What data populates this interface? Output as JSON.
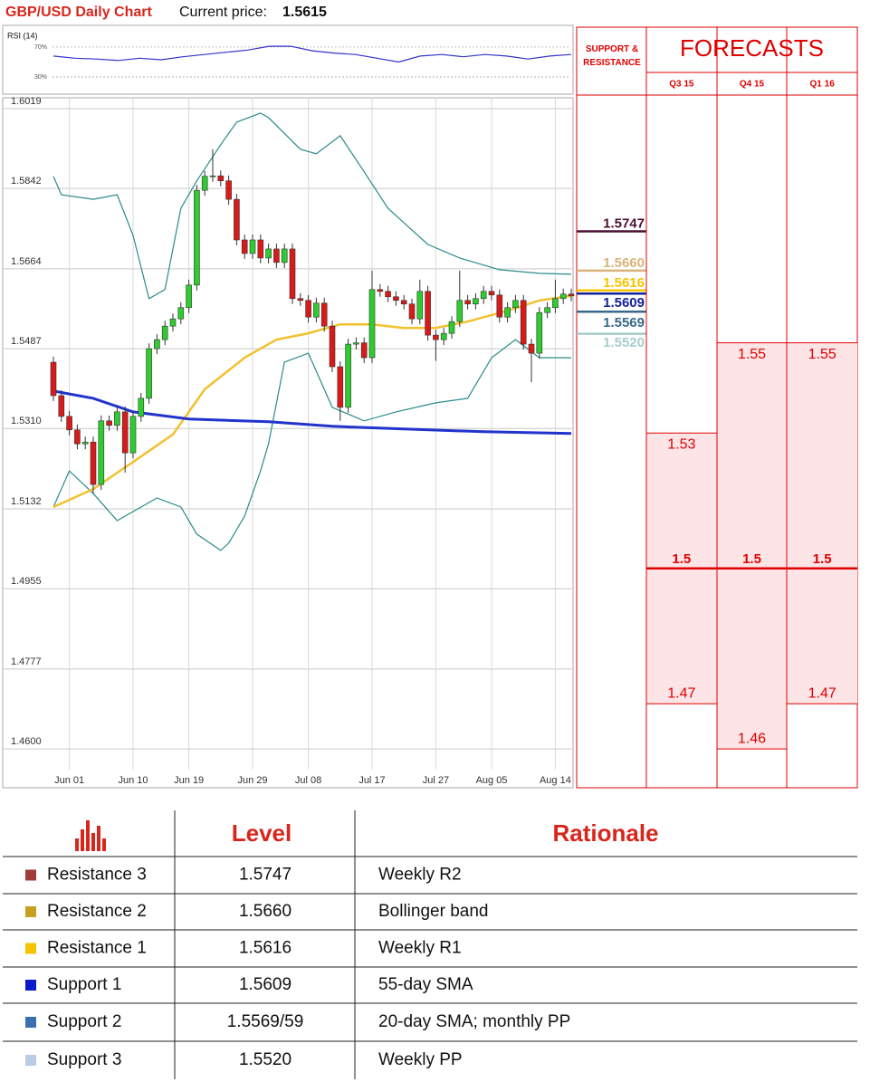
{
  "header": {
    "title": "GBP/USD Daily Chart",
    "price_label": "Current price:",
    "price": "1.5615"
  },
  "chart_data": {
    "type": "candlestick",
    "categories": [
      null,
      null,
      "Jun 01",
      null,
      null,
      null,
      null,
      null,
      null,
      null,
      "Jun 10",
      null,
      null,
      null,
      null,
      null,
      null,
      "Jun 19",
      null,
      null,
      null,
      null,
      null,
      null,
      null,
      "Jun 29",
      null,
      null,
      null,
      null,
      null,
      null,
      "Jul 08",
      null,
      null,
      null,
      null,
      null,
      null,
      null,
      "Jul 17",
      null,
      null,
      null,
      null,
      null,
      null,
      null,
      "Jul 27",
      null,
      null,
      null,
      null,
      null,
      null,
      "Aug 05",
      null,
      null,
      null,
      null,
      null,
      null,
      null,
      "Aug 14",
      null,
      null
    ],
    "open": [
      1.5457,
      1.5383,
      1.5337,
      1.5307,
      1.5276,
      1.528,
      1.5186,
      1.5327,
      1.5317,
      1.5347,
      1.5256,
      1.5337,
      1.5377,
      1.5487,
      1.5507,
      1.5537,
      1.5553,
      1.5578,
      1.5628,
      1.5838,
      1.5869,
      1.587,
      1.5859,
      1.5818,
      1.5728,
      1.5698,
      1.5728,
      1.5688,
      1.5708,
      1.5678,
      1.5708,
      1.5598,
      1.5594,
      1.5557,
      1.5588,
      1.5537,
      1.5447,
      1.5357,
      1.5497,
      1.55,
      1.5467,
      1.5618,
      1.5614,
      1.5602,
      1.5594,
      1.5586,
      1.5553,
      1.5614,
      1.5517,
      1.5507,
      1.5521,
      1.5547,
      1.5594,
      1.5586,
      1.5598,
      1.5614,
      1.5606,
      1.5557,
      1.5578,
      1.5594,
      1.5497,
      1.5477,
      1.5567,
      1.5578,
      1.5598,
      1.5608
    ],
    "high": [
      1.5469,
      1.5395,
      1.5349,
      1.5319,
      1.5292,
      1.5292,
      1.5339,
      1.5339,
      1.5359,
      1.5359,
      1.5349,
      1.5389,
      1.5499,
      1.5519,
      1.5549,
      1.5565,
      1.559,
      1.564,
      1.585,
      1.5881,
      1.5929,
      1.5882,
      1.5871,
      1.583,
      1.574,
      1.574,
      1.574,
      1.572,
      1.572,
      1.572,
      1.572,
      1.561,
      1.5606,
      1.56,
      1.56,
      1.5549,
      1.5459,
      1.5509,
      1.5512,
      1.5512,
      1.566,
      1.563,
      1.5626,
      1.5614,
      1.5606,
      1.5598,
      1.564,
      1.5626,
      1.5529,
      1.5533,
      1.5559,
      1.566,
      1.5606,
      1.561,
      1.5626,
      1.5626,
      1.5618,
      1.559,
      1.5606,
      1.5606,
      1.5509,
      1.5579,
      1.559,
      1.564,
      1.562,
      1.562
    ],
    "low": [
      1.5371,
      1.5325,
      1.5295,
      1.5264,
      1.5264,
      1.5166,
      1.5174,
      1.5305,
      1.5305,
      1.5212,
      1.5244,
      1.5325,
      1.5365,
      1.5475,
      1.5495,
      1.5525,
      1.5541,
      1.5566,
      1.5616,
      1.5826,
      1.5857,
      1.5847,
      1.5806,
      1.5716,
      1.5686,
      1.5686,
      1.5676,
      1.5676,
      1.5666,
      1.5666,
      1.5586,
      1.5582,
      1.5545,
      1.5545,
      1.5525,
      1.5435,
      1.5327,
      1.5345,
      1.5485,
      1.5455,
      1.5455,
      1.5602,
      1.559,
      1.5582,
      1.5574,
      1.5541,
      1.5541,
      1.5505,
      1.546,
      1.5495,
      1.5509,
      1.5535,
      1.5574,
      1.5574,
      1.5586,
      1.5594,
      1.5545,
      1.5545,
      1.5566,
      1.5485,
      1.5413,
      1.5465,
      1.5555,
      1.5566,
      1.5586,
      1.5592
    ],
    "close": [
      1.5383,
      1.5337,
      1.5307,
      1.5276,
      1.528,
      1.5186,
      1.5327,
      1.5317,
      1.5347,
      1.5256,
      1.5337,
      1.5377,
      1.5487,
      1.5507,
      1.5537,
      1.5553,
      1.5578,
      1.5628,
      1.5838,
      1.5869,
      1.587,
      1.5859,
      1.5818,
      1.5728,
      1.5698,
      1.5728,
      1.5688,
      1.5708,
      1.5678,
      1.5708,
      1.5598,
      1.5594,
      1.5557,
      1.5588,
      1.5537,
      1.5447,
      1.5357,
      1.5497,
      1.55,
      1.5467,
      1.5618,
      1.5614,
      1.5602,
      1.5594,
      1.5586,
      1.5553,
      1.5614,
      1.5517,
      1.5507,
      1.5521,
      1.5547,
      1.5594,
      1.5586,
      1.5598,
      1.5614,
      1.5606,
      1.5557,
      1.5578,
      1.5594,
      1.5497,
      1.5477,
      1.5567,
      1.5578,
      1.5598,
      1.5608,
      1.5604
    ],
    "up_color": "#2ecc2e",
    "down_color": "#d91a1a",
    "ylim": [
      1.4518,
      1.6043
    ],
    "yticks": [
      1.6019,
      1.5842,
      1.5664,
      1.5487,
      {
        "value": 1.531,
        "label": "1.5310"
      },
      1.5132,
      1.4955,
      1.4777,
      {
        "value": 1.46,
        "label": "1.4600"
      }
    ],
    "grid": true,
    "lines": [
      {
        "color": "#2a8a8a",
        "width": 1.2,
        "x": [
          0,
          1,
          5,
          8,
          10,
          12,
          14,
          16,
          18,
          21,
          23,
          26,
          27,
          31,
          33,
          36,
          39,
          42,
          47,
          51,
          56,
          61,
          65
        ],
        "values": [
          1.5869,
          1.5828,
          1.5818,
          1.5828,
          1.5738,
          1.5598,
          1.5618,
          1.5798,
          1.5859,
          1.5939,
          1.5989,
          1.6009,
          1.5999,
          1.5929,
          1.5919,
          1.5959,
          1.5879,
          1.5798,
          1.5718,
          1.5688,
          1.5662,
          1.5654,
          1.5652
        ]
      },
      {
        "color": "#2a8a8a",
        "width": 1.2,
        "x": [
          0,
          2,
          5,
          8,
          10,
          13,
          16,
          18,
          21,
          22,
          24,
          26,
          27,
          29,
          32,
          35,
          39,
          43,
          48,
          52,
          55,
          58,
          61,
          65
        ],
        "values": [
          1.5136,
          1.5216,
          1.5166,
          1.5106,
          1.5126,
          1.5156,
          1.5136,
          1.5076,
          1.504,
          1.5056,
          1.5116,
          1.5216,
          1.5276,
          1.5457,
          1.5477,
          1.5357,
          1.5327,
          1.5347,
          1.5367,
          1.5377,
          1.5467,
          1.5507,
          1.5467,
          1.5467
        ]
      },
      {
        "color": "#f2c12e",
        "width": 2.5,
        "x": [
          0,
          5,
          10,
          15,
          19,
          24,
          28,
          32,
          36,
          40,
          44,
          48,
          52,
          57,
          61,
          65
        ],
        "values": [
          1.5136,
          1.5176,
          1.5236,
          1.5297,
          1.5397,
          1.5467,
          1.5507,
          1.5521,
          1.5541,
          1.5541,
          1.5533,
          1.5533,
          1.5547,
          1.5571,
          1.5594,
          1.5604
        ]
      },
      {
        "color": "#2233cc",
        "width": 3,
        "x": [
          0,
          5,
          10,
          17,
          27,
          35,
          44,
          54,
          65
        ],
        "values": [
          1.5393,
          1.5377,
          1.5347,
          1.5331,
          1.5325,
          1.5315,
          1.5309,
          1.5303,
          1.5299
        ]
      }
    ],
    "rsi": {
      "title": "RSI (14)",
      "color": "#3333cc",
      "ylim": [
        7,
        99
      ],
      "levels": [
        {
          "value": 70,
          "label": "70%"
        },
        {
          "value": 30,
          "label": "30%"
        }
      ],
      "values": [
        58,
        55,
        54,
        52,
        55,
        53,
        57,
        60,
        63,
        66,
        71,
        71,
        65,
        62,
        60,
        55,
        50,
        58,
        60,
        57,
        60,
        58,
        54,
        58,
        60
      ]
    }
  },
  "levels": {
    "title": "SUPPORT & RESISTANCE",
    "items": [
      {
        "value": 1.5747,
        "color": "#4a1030"
      },
      {
        "value": 1.566,
        "label": "1.5660",
        "color": "#d8b47c"
      },
      {
        "value": 1.5616,
        "color": "#f5c400"
      },
      {
        "value": 1.5609,
        "color": "#14229a"
      },
      {
        "value": 1.5569,
        "color": "#3a6a8a"
      },
      {
        "value": 1.552,
        "label": "1.5520",
        "color": "#a8cccc"
      }
    ]
  },
  "forecasts": {
    "title": "FORECASTS",
    "color": "#e00000",
    "shade": "#fde4e6",
    "columns": [
      {
        "label": "Q3 15",
        "high": 1.53,
        "mid": 1.5,
        "low": 1.47
      },
      {
        "label": "Q4 15",
        "high": 1.55,
        "mid": 1.5,
        "low": 1.46
      },
      {
        "label": "Q1 16",
        "high": 1.55,
        "mid": 1.5,
        "low": 1.47
      }
    ]
  },
  "table": {
    "headers": [
      "Level",
      "Rationale"
    ],
    "rows": [
      {
        "name": "Resistance 3",
        "color": "#9e3b3b",
        "level": "1.5747",
        "rationale": "Weekly R2"
      },
      {
        "name": "Resistance 2",
        "color": "#c8a020",
        "level": "1.5660",
        "rationale": "Bollinger band"
      },
      {
        "name": "Resistance 1",
        "color": "#f5c400",
        "level": "1.5616",
        "rationale": "Weekly R1"
      },
      {
        "name": "Support 1",
        "color": "#0a1ac8",
        "level": "1.5609",
        "rationale": "55-day SMA"
      },
      {
        "name": "Support 2",
        "color": "#3a70b0",
        "level": "1.5569/59",
        "rationale": "20-day SMA; monthly PP"
      },
      {
        "name": "Support 3",
        "color": "#b8cce4",
        "level": "1.5520",
        "rationale": "Weekly PP"
      }
    ]
  }
}
